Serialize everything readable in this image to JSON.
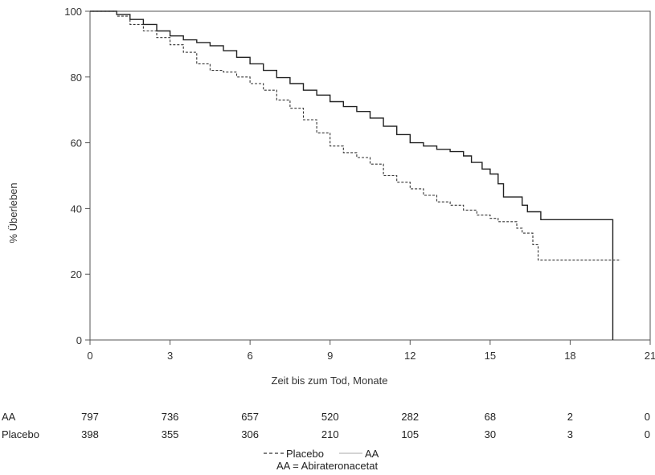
{
  "chart_data": {
    "type": "line",
    "title": "",
    "xlabel": "Zeit bis zum Tod, Monate",
    "ylabel": "% Überleben",
    "xlim": [
      0,
      21
    ],
    "ylim": [
      0,
      100
    ],
    "xticks": [
      0,
      3,
      6,
      9,
      12,
      15,
      18,
      21
    ],
    "yticks": [
      0,
      20,
      40,
      60,
      80,
      100
    ],
    "grid": false,
    "series": [
      {
        "name": "AA",
        "style": "solid",
        "color": "#222222",
        "step": true,
        "points": [
          [
            0,
            100
          ],
          [
            1,
            99
          ],
          [
            1.5,
            97.5
          ],
          [
            2,
            96
          ],
          [
            2.5,
            94
          ],
          [
            3,
            92.5
          ],
          [
            3.5,
            91.3
          ],
          [
            4,
            90.5
          ],
          [
            4.5,
            89.5
          ],
          [
            5,
            88
          ],
          [
            5.5,
            86
          ],
          [
            6,
            84
          ],
          [
            6.5,
            82
          ],
          [
            7,
            79.8
          ],
          [
            7.5,
            78
          ],
          [
            8,
            76
          ],
          [
            8.5,
            74.5
          ],
          [
            9,
            72.5
          ],
          [
            9.5,
            71
          ],
          [
            10,
            69.5
          ],
          [
            10.5,
            67.5
          ],
          [
            11,
            65
          ],
          [
            11.5,
            62.5
          ],
          [
            12,
            60
          ],
          [
            12.5,
            59
          ],
          [
            13,
            58
          ],
          [
            13.5,
            57.3
          ],
          [
            14,
            56
          ],
          [
            14.3,
            54
          ],
          [
            14.7,
            52
          ],
          [
            15,
            50.5
          ],
          [
            15.3,
            47.5
          ],
          [
            15.5,
            43.5
          ],
          [
            16,
            43.5
          ],
          [
            16.2,
            41
          ],
          [
            16.4,
            39
          ],
          [
            16.9,
            36.6
          ],
          [
            19.6,
            36.6
          ],
          [
            19.6,
            0
          ]
        ]
      },
      {
        "name": "Placebo",
        "style": "dashed",
        "color": "#333333",
        "step": true,
        "points": [
          [
            0,
            100
          ],
          [
            1,
            98.5
          ],
          [
            1.5,
            96
          ],
          [
            2,
            94
          ],
          [
            2.5,
            92
          ],
          [
            3,
            89.8
          ],
          [
            3.5,
            87.5
          ],
          [
            4,
            84
          ],
          [
            4.5,
            82
          ],
          [
            5,
            81.5
          ],
          [
            5.5,
            80
          ],
          [
            6,
            78
          ],
          [
            6.5,
            76
          ],
          [
            7,
            73
          ],
          [
            7.5,
            70.5
          ],
          [
            8,
            67
          ],
          [
            8.5,
            63
          ],
          [
            9,
            59
          ],
          [
            9.5,
            57
          ],
          [
            10,
            55.5
          ],
          [
            10.5,
            53.5
          ],
          [
            11,
            50
          ],
          [
            11.5,
            48
          ],
          [
            12,
            46
          ],
          [
            12.5,
            44
          ],
          [
            13,
            42
          ],
          [
            13.5,
            41
          ],
          [
            14,
            39.5
          ],
          [
            14.5,
            38
          ],
          [
            15,
            37
          ],
          [
            15.3,
            36
          ],
          [
            16,
            34
          ],
          [
            16.2,
            32.5
          ],
          [
            16.6,
            29
          ],
          [
            16.8,
            24.3
          ],
          [
            19.9,
            24.3
          ]
        ]
      }
    ],
    "legend": {
      "position": "bottom",
      "items": [
        {
          "label": "Placebo",
          "style": "dashed"
        },
        {
          "label": "AA",
          "style": "solid"
        }
      ]
    },
    "risk_table": {
      "rows": [
        {
          "label": "AA",
          "values": [
            "797",
            "736",
            "657",
            "520",
            "282",
            "68",
            "2",
            "0"
          ]
        },
        {
          "label": "Placebo",
          "values": [
            "398",
            "355",
            "306",
            "210",
            "105",
            "30",
            "3",
            "0"
          ]
        }
      ]
    },
    "footnote": "AA = Abirateronacetat"
  }
}
